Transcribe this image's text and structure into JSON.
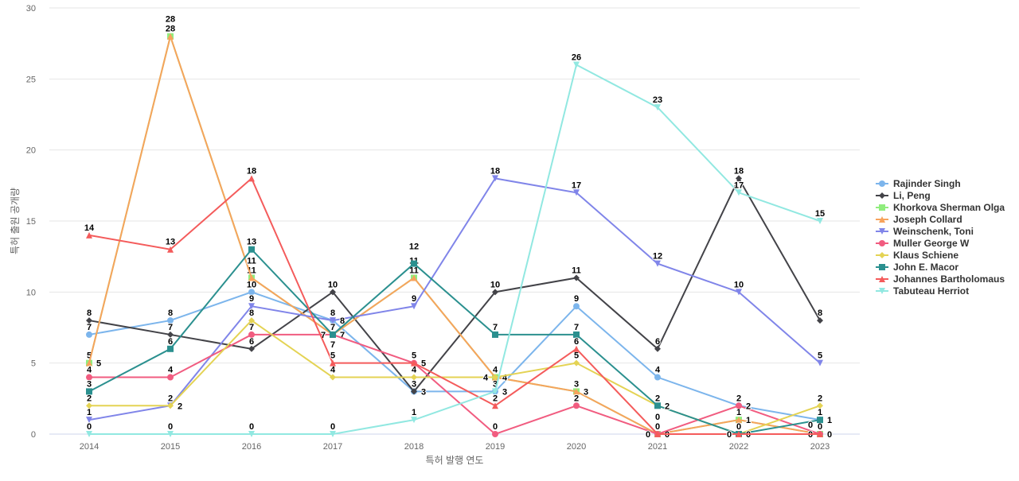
{
  "chart_data": {
    "type": "line",
    "xlabel": "특허 발행 연도",
    "ylabel": "특허 출원 공개량",
    "x": [
      2014,
      2015,
      2016,
      2017,
      2018,
      2019,
      2020,
      2021,
      2022,
      2023
    ],
    "ylim": [
      0,
      30
    ],
    "yticks": [
      0,
      5,
      10,
      15,
      20,
      25,
      30
    ],
    "grid": true,
    "legend_position": "right",
    "series": [
      {
        "name": "Rajinder Singh",
        "color": "#7cb5ec",
        "marker": "circle",
        "values": [
          7,
          8,
          10,
          8,
          3,
          3,
          9,
          4,
          2,
          1
        ]
      },
      {
        "name": "Li, Peng",
        "color": "#434348",
        "marker": "diamond",
        "values": [
          8,
          7,
          6,
          10,
          3,
          10,
          11,
          6,
          18,
          8
        ]
      },
      {
        "name": "Khorkova Sherman Olga",
        "color": "#90ed7d",
        "marker": "square",
        "values": [
          5,
          28,
          11,
          7,
          11,
          4,
          3,
          0,
          1,
          0
        ]
      },
      {
        "name": "Joseph Collard",
        "color": "#f7a35c",
        "marker": "triangle",
        "values": [
          5,
          28,
          11,
          7,
          11,
          4,
          3,
          0,
          1,
          0
        ]
      },
      {
        "name": "Weinschenk, Toni",
        "color": "#8085e9",
        "marker": "triangle-down",
        "values": [
          1,
          2,
          9,
          8,
          9,
          18,
          17,
          12,
          10,
          5
        ]
      },
      {
        "name": "Muller George W",
        "color": "#f15c80",
        "marker": "circle",
        "values": [
          4,
          4,
          7,
          7,
          5,
          0,
          2,
          0,
          2,
          0
        ]
      },
      {
        "name": "Klaus Schiene",
        "color": "#e4d354",
        "marker": "diamond",
        "values": [
          2,
          2,
          8,
          4,
          4,
          4,
          5,
          2,
          0,
          2
        ]
      },
      {
        "name": "John E. Macor",
        "color": "#2b908f",
        "marker": "square",
        "values": [
          3,
          6,
          13,
          7,
          12,
          7,
          7,
          2,
          0,
          1
        ]
      },
      {
        "name": "Johannes Bartholomaus",
        "color": "#f45b5b",
        "marker": "triangle",
        "values": [
          14,
          13,
          18,
          5,
          5,
          2,
          6,
          0,
          0,
          0
        ]
      },
      {
        "name": "Tabuteau Herriot",
        "color": "#91e8e1",
        "marker": "triangle-down",
        "values": [
          0,
          0,
          0,
          0,
          1,
          3,
          26,
          23,
          17,
          15
        ]
      }
    ]
  }
}
